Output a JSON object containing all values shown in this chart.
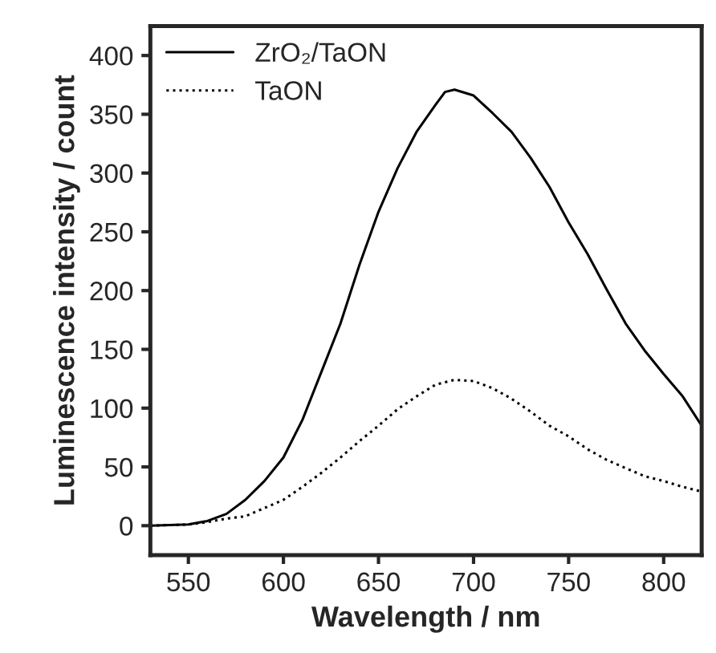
{
  "chart_data": {
    "type": "line",
    "xlabel": "Wavelength / nm",
    "ylabel": "Luminescence intensity / count",
    "x": [
      530,
      550,
      560,
      570,
      580,
      590,
      600,
      610,
      620,
      630,
      640,
      650,
      660,
      670,
      680,
      685,
      690,
      700,
      710,
      720,
      730,
      740,
      750,
      760,
      770,
      780,
      790,
      800,
      810,
      820
    ],
    "series": [
      {
        "name": "ZrO₂/TaON",
        "color": "#000000",
        "line_style": "solid",
        "values": [
          0,
          1,
          4,
          10,
          22,
          38,
          58,
          90,
          131,
          172,
          222,
          267,
          304,
          335,
          358,
          369,
          371,
          366,
          351,
          335,
          313,
          288,
          258,
          231,
          201,
          172,
          149,
          129,
          110,
          85
        ]
      },
      {
        "name": "TaON",
        "color": "#000000",
        "line_style": "dotted",
        "values": [
          0,
          1,
          3,
          6,
          8,
          15,
          22,
          33,
          45,
          58,
          72,
          85,
          99,
          110,
          120,
          122,
          124,
          123,
          117,
          108,
          97,
          85,
          76,
          65,
          56,
          49,
          42,
          38,
          33,
          29
        ]
      }
    ],
    "xlim": [
      530,
      820
    ],
    "xticks": [
      550,
      600,
      650,
      700,
      750,
      800
    ],
    "ylim": [
      -25,
      425
    ],
    "yticks": [
      0,
      50,
      100,
      150,
      200,
      250,
      300,
      350,
      400
    ],
    "grid": false,
    "legend": "top left"
  }
}
